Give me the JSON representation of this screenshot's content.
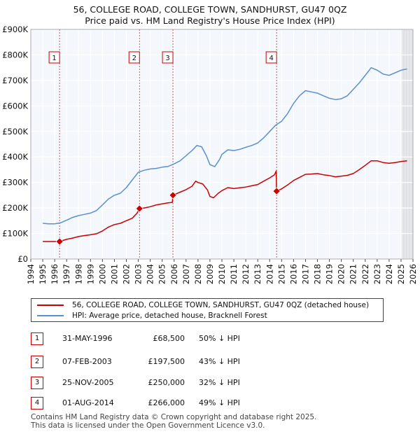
{
  "chart_data": {
    "type": "line",
    "title": "56, COLLEGE ROAD, COLLEGE TOWN, SANDHURST, GU47 0QZ",
    "subtitle": "Price paid vs. HM Land Registry's House Price Index (HPI)",
    "x_range": [
      1994,
      2026
    ],
    "x_ticks": [
      "1994",
      "1995",
      "1996",
      "1997",
      "1998",
      "1999",
      "2000",
      "2001",
      "2002",
      "2003",
      "2004",
      "2005",
      "2006",
      "2007",
      "2008",
      "2009",
      "2010",
      "2011",
      "2012",
      "2013",
      "2014",
      "2015",
      "2016",
      "2017",
      "2018",
      "2019",
      "2020",
      "2021",
      "2022",
      "2023",
      "2024",
      "2025",
      "2026"
    ],
    "y_range": [
      0,
      900000
    ],
    "y_ticks": [
      {
        "value": 0,
        "label": "£0"
      },
      {
        "value": 100000,
        "label": "£100K"
      },
      {
        "value": 200000,
        "label": "£200K"
      },
      {
        "value": 300000,
        "label": "£300K"
      },
      {
        "value": 400000,
        "label": "£400K"
      },
      {
        "value": 500000,
        "label": "£500K"
      },
      {
        "value": 600000,
        "label": "£600K"
      },
      {
        "value": 700000,
        "label": "£700K"
      },
      {
        "value": 800000,
        "label": "£800K"
      },
      {
        "value": 900000,
        "label": "£900K"
      }
    ],
    "grid": true,
    "series": [
      {
        "name": "56, COLLEGE ROAD, COLLEGE TOWN, SANDHURST, GU47 0QZ (detached house)",
        "color": "#cc0000",
        "points": [
          [
            1995.0,
            68500
          ],
          [
            1995.5,
            68500
          ],
          [
            1996.0,
            68500
          ],
          [
            1996.41,
            68500
          ],
          [
            1997.0,
            77000
          ],
          [
            1997.5,
            82000
          ],
          [
            1998.0,
            88000
          ],
          [
            1998.5,
            92000
          ],
          [
            1999.0,
            95000
          ],
          [
            1999.5,
            99000
          ],
          [
            2000.0,
            110000
          ],
          [
            2000.5,
            125000
          ],
          [
            2001.0,
            135000
          ],
          [
            2001.5,
            140000
          ],
          [
            2002.0,
            150000
          ],
          [
            2002.5,
            160000
          ],
          [
            2002.9,
            180000
          ],
          [
            2003.1,
            197500
          ],
          [
            2003.5,
            200000
          ],
          [
            2004.0,
            205000
          ],
          [
            2004.5,
            212000
          ],
          [
            2005.0,
            216000
          ],
          [
            2005.5,
            220000
          ],
          [
            2005.85,
            222000
          ],
          [
            2005.9,
            250000
          ],
          [
            2006.5,
            262000
          ],
          [
            2007.0,
            272000
          ],
          [
            2007.5,
            285000
          ],
          [
            2007.8,
            305000
          ],
          [
            2008.0,
            300000
          ],
          [
            2008.4,
            294000
          ],
          [
            2008.8,
            270000
          ],
          [
            2009.0,
            245000
          ],
          [
            2009.3,
            240000
          ],
          [
            2009.7,
            258000
          ],
          [
            2010.0,
            268000
          ],
          [
            2010.5,
            280000
          ],
          [
            2011.0,
            276000
          ],
          [
            2011.5,
            279000
          ],
          [
            2012.0,
            282000
          ],
          [
            2012.5,
            287000
          ],
          [
            2013.0,
            292000
          ],
          [
            2013.5,
            305000
          ],
          [
            2014.0,
            318000
          ],
          [
            2014.4,
            330000
          ],
          [
            2014.55,
            345000
          ],
          [
            2014.58,
            266000
          ],
          [
            2015.0,
            275000
          ],
          [
            2015.5,
            290000
          ],
          [
            2016.0,
            308000
          ],
          [
            2016.5,
            320000
          ],
          [
            2017.0,
            332000
          ],
          [
            2017.5,
            333000
          ],
          [
            2018.0,
            335000
          ],
          [
            2018.5,
            330000
          ],
          [
            2019.0,
            327000
          ],
          [
            2019.5,
            322000
          ],
          [
            2020.0,
            325000
          ],
          [
            2020.5,
            328000
          ],
          [
            2021.0,
            335000
          ],
          [
            2021.5,
            350000
          ],
          [
            2022.0,
            367000
          ],
          [
            2022.5,
            385000
          ],
          [
            2023.0,
            385000
          ],
          [
            2023.5,
            378000
          ],
          [
            2024.0,
            375000
          ],
          [
            2024.5,
            378000
          ],
          [
            2025.0,
            382000
          ],
          [
            2025.5,
            385000
          ]
        ]
      },
      {
        "name": "HPI: Average price, detached house, Bracknell Forest",
        "color": "#5b8fd0",
        "points": [
          [
            1995.0,
            140000
          ],
          [
            1995.5,
            138000
          ],
          [
            1996.0,
            138000
          ],
          [
            1996.5,
            142000
          ],
          [
            1997.0,
            152000
          ],
          [
            1997.5,
            163000
          ],
          [
            1998.0,
            170000
          ],
          [
            1998.5,
            175000
          ],
          [
            1999.0,
            180000
          ],
          [
            1999.5,
            190000
          ],
          [
            2000.0,
            212000
          ],
          [
            2000.5,
            235000
          ],
          [
            2001.0,
            250000
          ],
          [
            2001.5,
            258000
          ],
          [
            2002.0,
            280000
          ],
          [
            2002.5,
            310000
          ],
          [
            2003.0,
            340000
          ],
          [
            2003.5,
            348000
          ],
          [
            2004.0,
            353000
          ],
          [
            2004.5,
            355000
          ],
          [
            2005.0,
            360000
          ],
          [
            2005.5,
            363000
          ],
          [
            2006.0,
            373000
          ],
          [
            2006.5,
            385000
          ],
          [
            2007.0,
            405000
          ],
          [
            2007.5,
            425000
          ],
          [
            2007.9,
            445000
          ],
          [
            2008.3,
            440000
          ],
          [
            2008.7,
            405000
          ],
          [
            2009.0,
            370000
          ],
          [
            2009.4,
            362000
          ],
          [
            2009.8,
            390000
          ],
          [
            2010.0,
            410000
          ],
          [
            2010.5,
            428000
          ],
          [
            2011.0,
            425000
          ],
          [
            2011.5,
            430000
          ],
          [
            2012.0,
            438000
          ],
          [
            2012.5,
            445000
          ],
          [
            2013.0,
            455000
          ],
          [
            2013.5,
            475000
          ],
          [
            2014.0,
            500000
          ],
          [
            2014.5,
            525000
          ],
          [
            2015.0,
            540000
          ],
          [
            2015.5,
            570000
          ],
          [
            2016.0,
            610000
          ],
          [
            2016.5,
            640000
          ],
          [
            2017.0,
            660000
          ],
          [
            2017.5,
            655000
          ],
          [
            2018.0,
            650000
          ],
          [
            2018.5,
            640000
          ],
          [
            2019.0,
            630000
          ],
          [
            2019.5,
            625000
          ],
          [
            2020.0,
            628000
          ],
          [
            2020.5,
            640000
          ],
          [
            2021.0,
            665000
          ],
          [
            2021.5,
            690000
          ],
          [
            2022.0,
            720000
          ],
          [
            2022.5,
            750000
          ],
          [
            2023.0,
            740000
          ],
          [
            2023.5,
            725000
          ],
          [
            2024.0,
            720000
          ],
          [
            2024.5,
            730000
          ],
          [
            2025.0,
            740000
          ],
          [
            2025.5,
            745000
          ]
        ]
      }
    ],
    "sales": [
      {
        "num": "1",
        "year": 1996.41,
        "price": 68500,
        "date": "31-MAY-1996",
        "price_label": "£68,500",
        "hpi_note": "50% ↓ HPI"
      },
      {
        "num": "2",
        "year": 2003.1,
        "price": 197500,
        "date": "07-FEB-2003",
        "price_label": "£197,500",
        "hpi_note": "43% ↓ HPI"
      },
      {
        "num": "3",
        "year": 2005.9,
        "price": 250000,
        "date": "25-NOV-2005",
        "price_label": "£250,000",
        "hpi_note": "32% ↓ HPI"
      },
      {
        "num": "4",
        "year": 2014.58,
        "price": 266000,
        "date": "01-AUG-2014",
        "price_label": "£266,000",
        "hpi_note": "49% ↓ HPI"
      }
    ],
    "forecast_from": 2025.0,
    "legend": {
      "property_label": "56, COLLEGE ROAD, COLLEGE TOWN, SANDHURST, GU47 0QZ (detached house)",
      "hpi_label": "HPI: Average price, detached house, Bracknell Forest"
    }
  },
  "footer": {
    "line1": "Contains HM Land Registry data © Crown copyright and database right 2025.",
    "line2": "This data is licensed under the Open Government Licence v3.0."
  }
}
